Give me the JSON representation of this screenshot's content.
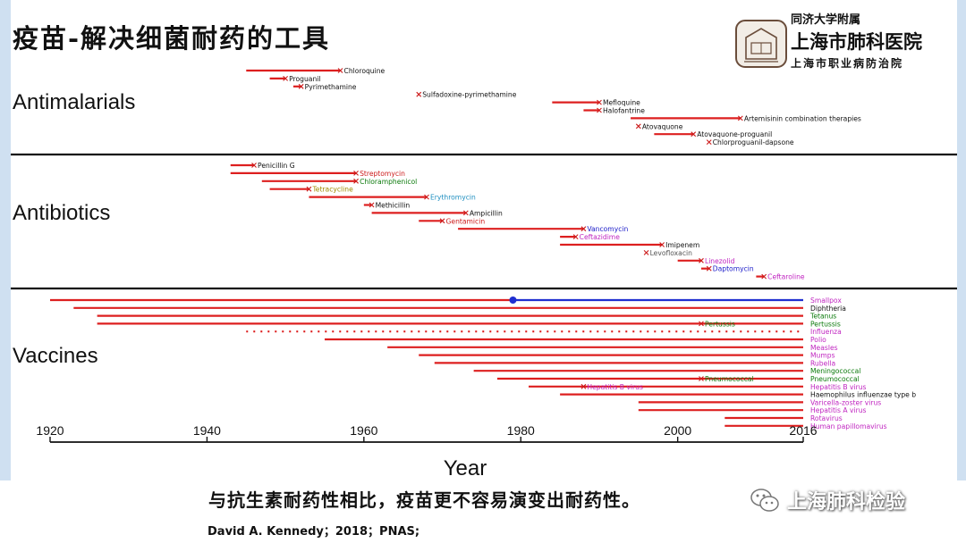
{
  "page": {
    "title": "疫苗-解决细菌耐药的工具",
    "hospital": {
      "line1": "同济大学附属",
      "line2": "上海市肺科医院",
      "line3": "上海市职业病防治院"
    },
    "caption": "与抗生素耐药性相比，疫苗更不容易演变出耐药性。",
    "citation": "David A. Kennedy；2018；PNAS;",
    "watermark": "上海肺科检验",
    "icons": {
      "logo": "hospital-seal-icon",
      "wechat": "wechat-icon"
    }
  },
  "chart_data": {
    "type": "timeline",
    "xlabel": "Year",
    "xlim": [
      1920,
      2016
    ],
    "xticks": [
      1920,
      1940,
      1960,
      1980,
      2000,
      2016
    ],
    "colors": {
      "bar": "#dd1f1f",
      "vaccine_bar": "#dd1f1f",
      "smallpox": "#1f2fd0",
      "black": "#111111",
      "green": "#0b7a0b",
      "magenta": "#c025c0",
      "blue": "#1a1ac8",
      "red": "#cc1a1a",
      "olive": "#a08a00",
      "teal": "#1f8fc0",
      "gray": "#555555"
    },
    "groups": [
      {
        "name": "Antimalarials",
        "items": [
          {
            "label": "Chloroquine",
            "start": 1945,
            "end": 1957,
            "color": "black"
          },
          {
            "label": "Proguanil",
            "start": 1948,
            "end": 1950,
            "color": "black"
          },
          {
            "label": "Pyrimethamine",
            "start": 1951,
            "end": 1952,
            "color": "black"
          },
          {
            "label": "Sulfadoxine-pyrimethamine",
            "start": null,
            "end": 1967,
            "color": "black"
          },
          {
            "label": "Mefloquine",
            "start": 1984,
            "end": 1990,
            "color": "black"
          },
          {
            "label": "Halofantrine",
            "start": 1988,
            "end": 1990,
            "color": "black"
          },
          {
            "label": "Artemisinin combination therapies",
            "start": 1994,
            "end": 2008,
            "color": "black"
          },
          {
            "label": "Atovaquone",
            "start": null,
            "end": 1995,
            "color": "black"
          },
          {
            "label": "Atovaquone-proguanil",
            "start": 1997,
            "end": 2002,
            "color": "black"
          },
          {
            "label": "Chlorproguanil-dapsone",
            "start": null,
            "end": 2004,
            "color": "black"
          }
        ]
      },
      {
        "name": "Antibiotics",
        "items": [
          {
            "label": "Penicillin G",
            "start": 1943,
            "end": 1946,
            "color": "black"
          },
          {
            "label": "Streptomycin",
            "start": 1943,
            "end": 1959,
            "color": "red"
          },
          {
            "label": "Chloramphenicol",
            "start": 1947,
            "end": 1959,
            "color": "green"
          },
          {
            "label": "Tetracycline",
            "start": 1948,
            "end": 1953,
            "color": "olive"
          },
          {
            "label": "Erythromycin",
            "start": 1953,
            "end": 1968,
            "color": "teal"
          },
          {
            "label": "Methicillin",
            "start": 1960,
            "end": 1961,
            "color": "black"
          },
          {
            "label": "Ampicillin",
            "start": 1961,
            "end": 1973,
            "color": "black"
          },
          {
            "label": "Gentamicin",
            "start": 1967,
            "end": 1970,
            "color": "red"
          },
          {
            "label": "Vancomycin",
            "start": 1972,
            "end": 1988,
            "color": "blue"
          },
          {
            "label": "Ceftazidime",
            "start": 1985,
            "end": 1987,
            "color": "magenta"
          },
          {
            "label": "Imipenem",
            "start": 1985,
            "end": 1998,
            "color": "black"
          },
          {
            "label": "Levofloxacin",
            "start": null,
            "end": 1996,
            "color": "gray"
          },
          {
            "label": "Linezolid",
            "start": 2000,
            "end": 2003,
            "color": "magenta"
          },
          {
            "label": "Daptomycin",
            "start": 2003,
            "end": 2004,
            "color": "blue"
          },
          {
            "label": "Ceftaroline",
            "start": 2010,
            "end": 2011,
            "color": "magenta"
          }
        ]
      },
      {
        "name": "Vaccines",
        "items": [
          {
            "label": "Smallpox",
            "start": 1920,
            "end": 2016,
            "color": "magenta",
            "marker": 1979
          },
          {
            "label": "Diphtheria",
            "start": 1923,
            "end": 2016,
            "color": "black"
          },
          {
            "label": "Tetanus",
            "start": 1926,
            "end": 2016,
            "color": "green"
          },
          {
            "label": "Pertussis",
            "start": 1926,
            "end": 2016,
            "color": "green",
            "resistance": 2003
          },
          {
            "label": "Influenza",
            "start": 1945,
            "end": 2016,
            "color": "magenta",
            "dotted": true
          },
          {
            "label": "Polio",
            "start": 1955,
            "end": 2016,
            "color": "magenta"
          },
          {
            "label": "Measles",
            "start": 1963,
            "end": 2016,
            "color": "magenta"
          },
          {
            "label": "Mumps",
            "start": 1967,
            "end": 2016,
            "color": "magenta"
          },
          {
            "label": "Rubella",
            "start": 1969,
            "end": 2016,
            "color": "magenta"
          },
          {
            "label": "Meningococcal",
            "start": 1974,
            "end": 2016,
            "color": "green"
          },
          {
            "label": "Pneumococcal",
            "start": 1977,
            "end": 2016,
            "color": "green",
            "resistance": 2003
          },
          {
            "label": "Hepatitis B virus",
            "start": 1981,
            "end": 2016,
            "color": "magenta",
            "resistance": 1988
          },
          {
            "label": "Haemophilus influenzae type b",
            "start": 1985,
            "end": 2016,
            "color": "black"
          },
          {
            "label": "Varicella-zoster virus",
            "start": 1995,
            "end": 2016,
            "color": "magenta"
          },
          {
            "label": "Hepatitis A virus",
            "start": 1995,
            "end": 2016,
            "color": "magenta"
          },
          {
            "label": "Rotavirus",
            "start": 2006,
            "end": 2016,
            "color": "magenta"
          },
          {
            "label": "Human papillomavirus",
            "start": 2006,
            "end": 2016,
            "color": "magenta"
          }
        ]
      }
    ]
  }
}
